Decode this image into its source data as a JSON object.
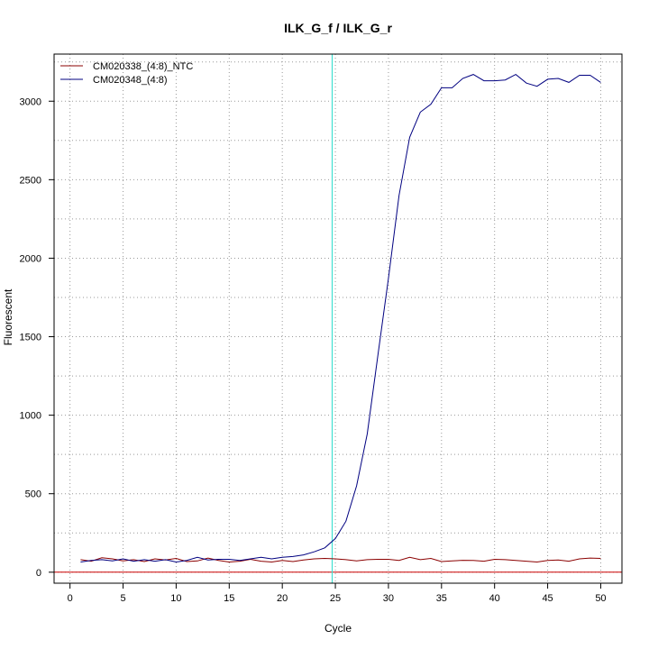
{
  "chart_data": {
    "type": "line",
    "title": "ILK_G_f / ILK_G_r",
    "xlabel": "Cycle",
    "ylabel": "Fluorescent",
    "xlim": [
      -1.5,
      52
    ],
    "ylim": [
      -70,
      3300
    ],
    "x_ticks": [
      0,
      5,
      10,
      15,
      20,
      25,
      30,
      35,
      40,
      45,
      50
    ],
    "y_ticks": [
      0,
      500,
      1000,
      1500,
      2000,
      2500,
      3000
    ],
    "x_tick_labels": [
      "0",
      "5",
      "10",
      "15",
      "20",
      "25",
      "30",
      "35",
      "40",
      "45",
      "50"
    ],
    "y_tick_labels": [
      "0",
      "500",
      "1000",
      "1500",
      "2000",
      "2500",
      "3000"
    ],
    "grid": true,
    "grid_y_minor": [
      250,
      750,
      1250,
      1750,
      2250,
      2750,
      3250
    ],
    "legend_position": "top-left",
    "threshold_x": 24.7,
    "threshold_color": "#40e0d0",
    "baseline_y": 0,
    "baseline_color": "#cc0000",
    "series": [
      {
        "name": "CM020338_(4:8)_NTC",
        "color": "#8b0000",
        "x": [
          1,
          2,
          3,
          4,
          5,
          6,
          7,
          8,
          9,
          10,
          11,
          12,
          13,
          14,
          15,
          16,
          17,
          18,
          19,
          20,
          21,
          22,
          23,
          24,
          25,
          26,
          27,
          28,
          29,
          30,
          31,
          32,
          33,
          34,
          35,
          36,
          37,
          38,
          39,
          40,
          41,
          42,
          43,
          44,
          45,
          46,
          47,
          48,
          49,
          50
        ],
        "values": [
          80,
          70,
          92,
          85,
          72,
          80,
          68,
          85,
          78,
          88,
          68,
          72,
          90,
          75,
          65,
          70,
          82,
          70,
          65,
          75,
          68,
          78,
          85,
          88,
          85,
          80,
          72,
          80,
          82,
          82,
          75,
          95,
          80,
          88,
          68,
          72,
          76,
          75,
          70,
          82,
          80,
          75,
          70,
          65,
          75,
          78,
          70,
          85,
          90,
          88
        ]
      },
      {
        "name": "CM020348_(4:8)",
        "color": "#000080",
        "x": [
          1,
          2,
          3,
          4,
          5,
          6,
          7,
          8,
          9,
          10,
          11,
          12,
          13,
          14,
          15,
          16,
          17,
          18,
          19,
          20,
          21,
          22,
          23,
          24,
          25,
          26,
          27,
          28,
          29,
          30,
          31,
          32,
          33,
          34,
          35,
          36,
          37,
          38,
          39,
          40,
          41,
          42,
          43,
          44,
          45,
          46,
          47,
          48,
          49,
          50
        ],
        "values": [
          65,
          75,
          80,
          72,
          85,
          70,
          80,
          70,
          80,
          65,
          75,
          95,
          78,
          82,
          82,
          75,
          85,
          95,
          85,
          95,
          100,
          110,
          130,
          155,
          215,
          325,
          550,
          880,
          1380,
          1870,
          2400,
          2770,
          2930,
          2980,
          3085,
          3085,
          3145,
          3170,
          3130,
          3130,
          3135,
          3170,
          3115,
          3095,
          3140,
          3145,
          3120,
          3165,
          3165,
          3120
        ]
      }
    ]
  }
}
